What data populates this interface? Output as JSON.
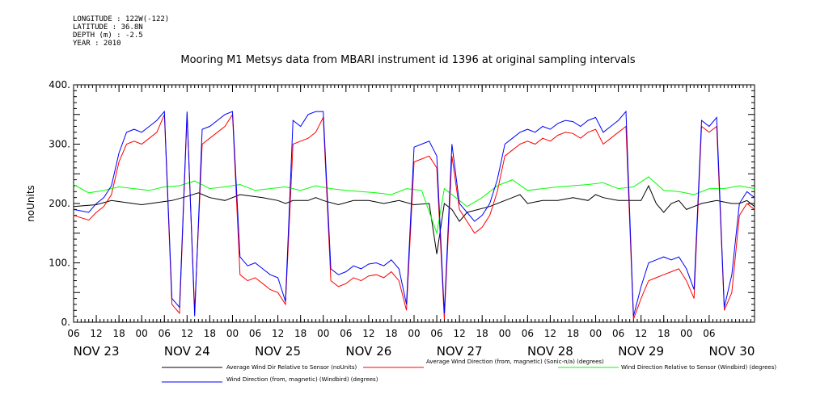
{
  "header": {
    "longitude": "LONGITUDE : 122W(-122)",
    "latitude": "LATITUDE : 36.8N",
    "depth": "DEPTH (m) : -2.5",
    "year": "YEAR : 2010"
  },
  "chart_data": {
    "type": "line",
    "title": "Mooring M1 Metsys data from MBARI instrument id 1396 at original sampling intervals",
    "ylabel": "noUnits",
    "xlabel": "",
    "ylim": [
      0,
      400
    ],
    "yticks": [
      0,
      100,
      200,
      300,
      400
    ],
    "yticklabels": [
      "0.",
      "100.",
      "200.",
      "300.",
      "400."
    ],
    "xlim_hours": [
      0,
      180
    ],
    "hour_ticks": [
      "06",
      "12",
      "18",
      "00",
      "06",
      "12",
      "18",
      "00",
      "06",
      "12",
      "18",
      "00",
      "06",
      "12",
      "18",
      "00",
      "06",
      "12",
      "18",
      "00",
      "06",
      "12",
      "18",
      "00",
      "06",
      "12",
      "18",
      "00",
      "06"
    ],
    "day_labels": [
      "NOV 23",
      "NOV 24",
      "NOV 25",
      "NOV 26",
      "NOV 27",
      "NOV 28",
      "NOV 29",
      "NOV 30"
    ],
    "grid": false,
    "legend_position": "bottom",
    "series": [
      {
        "name": "Average Wind Dir Relative to Sensor (noUnits)",
        "color": "#000000",
        "x": [
          0,
          6,
          10,
          18,
          26,
          30,
          33,
          36,
          40,
          44,
          50,
          54,
          56,
          58,
          62,
          64,
          66,
          70,
          74,
          78,
          82,
          86,
          90,
          94,
          96,
          98,
          100,
          102,
          104,
          110,
          114,
          118,
          120,
          124,
          128,
          132,
          136,
          138,
          140,
          144,
          150,
          152,
          154,
          156,
          158,
          160,
          162,
          166,
          170,
          174,
          176,
          178,
          180
        ],
        "y": [
          195,
          198,
          205,
          198,
          205,
          212,
          218,
          210,
          205,
          215,
          210,
          205,
          200,
          205,
          205,
          210,
          205,
          198,
          205,
          205,
          200,
          205,
          198,
          200,
          115,
          200,
          190,
          170,
          185,
          195,
          205,
          215,
          200,
          205,
          205,
          210,
          205,
          215,
          210,
          205,
          205,
          230,
          200,
          185,
          200,
          205,
          190,
          200,
          205,
          200,
          200,
          205,
          195
        ]
      },
      {
        "name": "Average Wind Direction (from, magnetic) (Sonic-n/a) (degrees)",
        "color": "#ff0000",
        "x": [
          0,
          4,
          6,
          8,
          10,
          12,
          14,
          16,
          18,
          20,
          22,
          24,
          26,
          28,
          30,
          32,
          34,
          36,
          38,
          40,
          42,
          44,
          46,
          48,
          50,
          52,
          54,
          56,
          58,
          60,
          62,
          64,
          66,
          68,
          70,
          72,
          74,
          76,
          78,
          80,
          82,
          84,
          86,
          88,
          90,
          92,
          94,
          96,
          98,
          100,
          102,
          104,
          106,
          108,
          110,
          112,
          114,
          116,
          118,
          120,
          122,
          124,
          126,
          128,
          130,
          132,
          134,
          136,
          138,
          140,
          142,
          144,
          146,
          148,
          150,
          152,
          154,
          156,
          158,
          160,
          162,
          164,
          166,
          168,
          170,
          172,
          174,
          176,
          178,
          180
        ],
        "y": [
          180,
          172,
          185,
          195,
          215,
          270,
          300,
          305,
          300,
          310,
          320,
          350,
          30,
          15,
          350,
          20,
          300,
          310,
          320,
          330,
          350,
          80,
          70,
          75,
          65,
          55,
          50,
          30,
          300,
          305,
          310,
          320,
          345,
          70,
          60,
          65,
          75,
          70,
          78,
          80,
          75,
          85,
          70,
          20,
          270,
          275,
          280,
          260,
          5,
          280,
          190,
          170,
          150,
          160,
          180,
          220,
          280,
          290,
          300,
          305,
          300,
          310,
          305,
          315,
          320,
          318,
          310,
          320,
          325,
          300,
          310,
          320,
          330,
          5,
          40,
          70,
          75,
          80,
          85,
          90,
          70,
          40,
          330,
          320,
          330,
          20,
          50,
          180,
          200,
          190
        ]
      },
      {
        "name": "Wind Direction Relative to Sensor (Windbird) (degrees)",
        "color": "#00ff00",
        "x": [
          0,
          4,
          8,
          12,
          16,
          20,
          24,
          28,
          32,
          36,
          40,
          44,
          48,
          52,
          56,
          60,
          64,
          68,
          72,
          76,
          80,
          84,
          88,
          92,
          96,
          98,
          100,
          104,
          108,
          112,
          116,
          120,
          124,
          128,
          132,
          136,
          140,
          144,
          148,
          152,
          156,
          160,
          164,
          168,
          172,
          176,
          180
        ],
        "y": [
          232,
          218,
          222,
          228,
          225,
          222,
          228,
          230,
          238,
          225,
          228,
          232,
          222,
          225,
          228,
          222,
          230,
          225,
          222,
          220,
          218,
          215,
          225,
          222,
          150,
          225,
          215,
          195,
          210,
          230,
          240,
          222,
          225,
          228,
          230,
          232,
          235,
          225,
          228,
          245,
          222,
          220,
          215,
          225,
          225,
          230,
          225
        ]
      },
      {
        "name": "Wind Direction (from, magnetic) (Windbird) (degrees)",
        "color": "#0000ff",
        "x": [
          0,
          4,
          6,
          8,
          10,
          12,
          14,
          16,
          18,
          20,
          22,
          24,
          26,
          28,
          30,
          32,
          34,
          36,
          38,
          40,
          42,
          44,
          46,
          48,
          50,
          52,
          54,
          56,
          58,
          60,
          62,
          64,
          66,
          68,
          70,
          72,
          74,
          76,
          78,
          80,
          82,
          84,
          86,
          88,
          90,
          92,
          94,
          96,
          98,
          100,
          102,
          104,
          106,
          108,
          110,
          112,
          114,
          116,
          118,
          120,
          122,
          124,
          126,
          128,
          130,
          132,
          134,
          136,
          138,
          140,
          142,
          144,
          146,
          148,
          150,
          152,
          154,
          156,
          158,
          160,
          162,
          164,
          166,
          168,
          170,
          172,
          174,
          176,
          178,
          180
        ],
        "y": [
          190,
          185,
          200,
          210,
          230,
          285,
          320,
          325,
          320,
          330,
          340,
          355,
          40,
          25,
          355,
          10,
          325,
          330,
          340,
          350,
          355,
          110,
          95,
          100,
          90,
          80,
          75,
          35,
          340,
          330,
          350,
          355,
          355,
          90,
          80,
          85,
          95,
          90,
          98,
          100,
          95,
          105,
          90,
          30,
          295,
          300,
          305,
          280,
          15,
          300,
          200,
          185,
          170,
          180,
          200,
          240,
          300,
          310,
          320,
          325,
          320,
          330,
          325,
          335,
          340,
          338,
          330,
          340,
          345,
          320,
          330,
          340,
          355,
          10,
          60,
          100,
          105,
          110,
          105,
          110,
          90,
          55,
          340,
          330,
          345,
          25,
          80,
          200,
          220,
          210
        ]
      }
    ]
  }
}
